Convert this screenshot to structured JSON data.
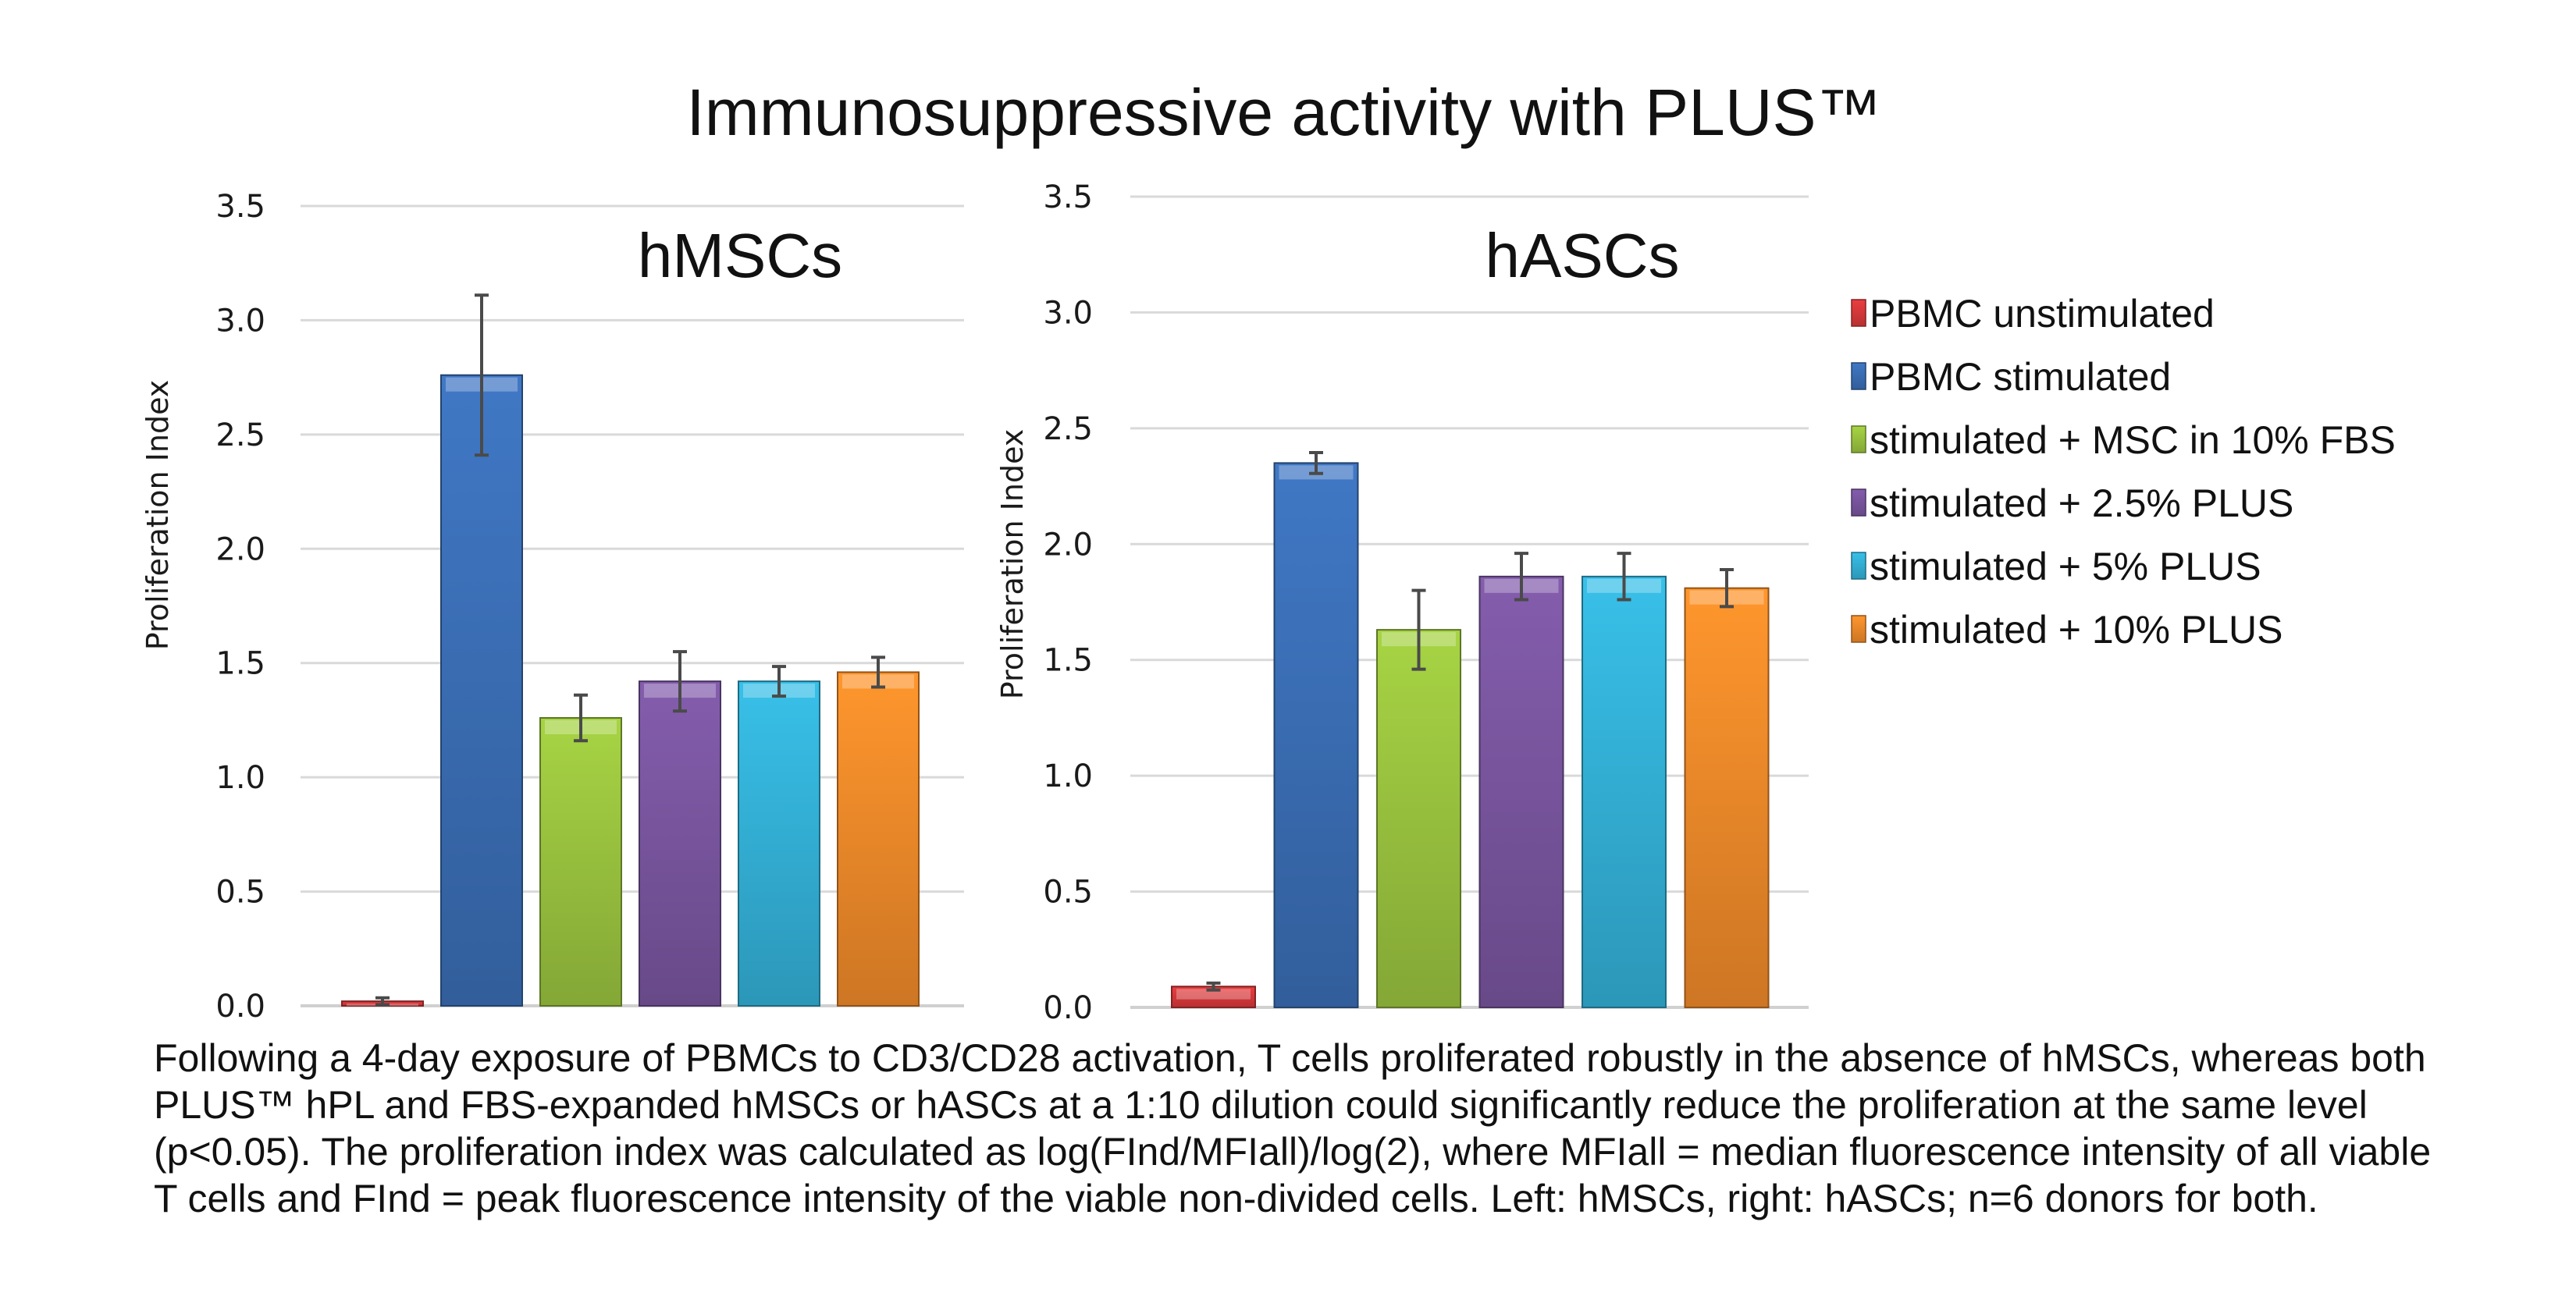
{
  "title": "Immunosuppressive activity with PLUS™",
  "legend": {
    "items": [
      {
        "label": "PBMC unstimulated",
        "color": "#d9393b"
      },
      {
        "label": "PBMC stimulated",
        "color": "#3b6fb6"
      },
      {
        "label": "stimulated + MSC in 10% FBS",
        "color": "#9bc43f"
      },
      {
        "label": "stimulated + 2.5% PLUS",
        "color": "#7a56a0"
      },
      {
        "label": "stimulated + 5% PLUS",
        "color": "#34b2d8"
      },
      {
        "label": "stimulated + 10% PLUS",
        "color": "#f18b2a"
      }
    ]
  },
  "caption": {
    "lines": [
      "Following a 4-day exposure of PBMCs to CD3/CD28 activation, T cells proliferated robustly in the absence of hMSCs, whereas both",
      "PLUS™ hPL and FBS-expanded hMSCs or hASCs at a 1:10 dilution could significantly reduce the proliferation at the same level",
      "(p<0.05). The proliferation index was calculated as log(FInd/MFIall)/log(2), where MFIall = median fluorescence intensity of all viable",
      "T cells and FInd = peak fluorescence intensity of the viable non-divided cells. Left: hMSCs, right: hASCs; n=6 donors for both."
    ]
  },
  "chart_data": [
    {
      "type": "bar",
      "title": "hMSCs",
      "xlabel": "",
      "ylabel": "Proliferation Index",
      "ylim": [
        0,
        3.5
      ],
      "yticks": [
        "0.0",
        "0.5",
        "1.0",
        "1.5",
        "2.0",
        "2.5",
        "3.0",
        "3.5"
      ],
      "grid": true,
      "legend_position": "right",
      "categories": [
        "PBMC unstimulated",
        "PBMC stimulated",
        "stimulated + MSC in 10% FBS",
        "stimulated + 2.5% PLUS",
        "stimulated + 5% PLUS",
        "stimulated + 10% PLUS"
      ],
      "values": [
        0.02,
        2.76,
        1.26,
        1.42,
        1.42,
        1.46
      ],
      "errors": [
        0.015,
        0.35,
        0.1,
        0.13,
        0.065,
        0.065
      ]
    },
    {
      "type": "bar",
      "title": "hASCs",
      "xlabel": "",
      "ylabel": "Proliferation Index",
      "ylim": [
        0,
        3.5
      ],
      "yticks": [
        "0.0",
        "0.5",
        "1.0",
        "1.5",
        "2.0",
        "2.5",
        "3.0",
        "3.5"
      ],
      "grid": true,
      "legend_position": "right",
      "categories": [
        "PBMC unstimulated",
        "PBMC stimulated",
        "stimulated + MSC in 10% FBS",
        "stimulated + 2.5% PLUS",
        "stimulated + 5% PLUS",
        "stimulated + 10% PLUS"
      ],
      "values": [
        0.09,
        2.35,
        1.63,
        1.86,
        1.86,
        1.81
      ],
      "errors": [
        0.015,
        0.045,
        0.17,
        0.1,
        0.1,
        0.08
      ]
    }
  ]
}
